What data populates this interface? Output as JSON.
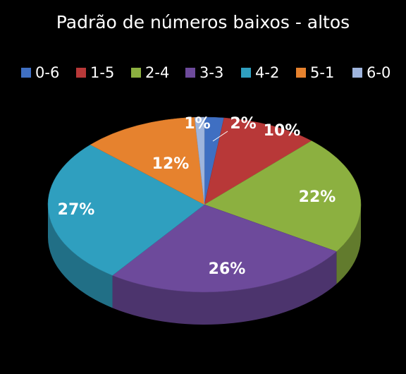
{
  "chart_data": {
    "type": "pie",
    "title": "Padrão de números baixos - altos",
    "categories": [
      "0-6",
      "1-5",
      "2-4",
      "3-3",
      "4-2",
      "5-1",
      "6-0"
    ],
    "values": [
      2,
      10,
      22,
      26,
      27,
      12,
      1
    ],
    "value_labels": [
      "2%",
      "10%",
      "22%",
      "26%",
      "27%",
      "12%",
      "1%"
    ],
    "colors": [
      "#3f6fc2",
      "#b83838",
      "#8cb040",
      "#6d4a9b",
      "#2f9fbf",
      "#e6822e",
      "#9fb5dd"
    ],
    "legend": "top"
  }
}
